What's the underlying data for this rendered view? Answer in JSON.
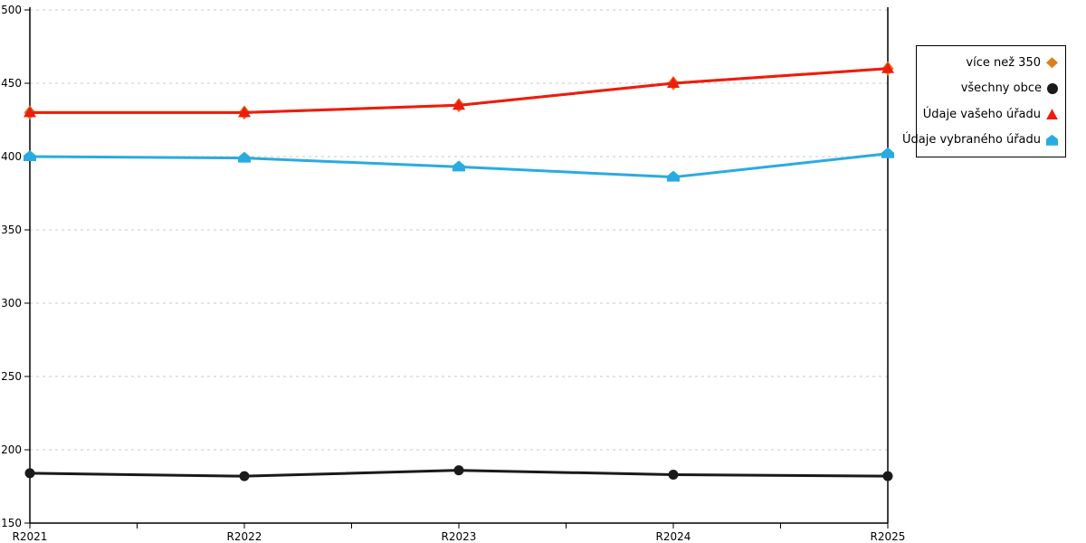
{
  "chart_data": {
    "type": "line",
    "title": "",
    "xlabel": "",
    "ylabel": "",
    "categories": [
      "R2021",
      "R2022",
      "R2023",
      "R2024",
      "R2025"
    ],
    "series": [
      {
        "name": "více než 350",
        "marker": "diamond",
        "color": "#dd7f1b",
        "values": [
          430,
          430,
          435,
          450,
          460
        ]
      },
      {
        "name": "všechny obce",
        "marker": "circle",
        "color": "#1a1a1a",
        "values": [
          184,
          182,
          186,
          183,
          182
        ]
      },
      {
        "name": "Údaje vašeho úřadu",
        "marker": "triangle",
        "color": "#ee1c0f",
        "values": [
          430,
          430,
          435,
          450,
          460
        ]
      },
      {
        "name": "Údaje vybraného úřadu",
        "marker": "pentagon",
        "color": "#29abe2",
        "values": [
          400,
          399,
          393,
          386,
          402
        ]
      }
    ],
    "ylim": [
      150,
      500
    ],
    "ytick_step": 50,
    "yticks": [
      150,
      200,
      250,
      300,
      350,
      400,
      450,
      500
    ],
    "grid": "horizontal-dashed",
    "grid_color": "#c8c8c8",
    "axis_color": "#000000",
    "legend_position": "right"
  }
}
